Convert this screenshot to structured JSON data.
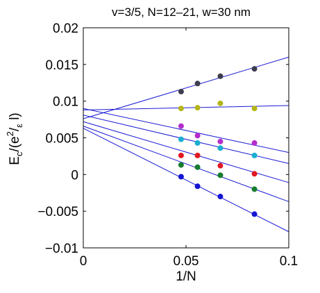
{
  "chart_data": {
    "type": "scatter",
    "title": "v=3/5, N=12–21, w=30 nm",
    "xlabel": "1/N",
    "ylabel": {
      "base": "E",
      "sub": "c",
      "rest1": "/(e",
      "sup": "2",
      "rest2": "/",
      "eps": "ε",
      "rest3": " l)"
    },
    "xlim": [
      0,
      0.1
    ],
    "ylim": [
      -0.01,
      0.02
    ],
    "xticks": [
      0,
      0.05,
      0.1
    ],
    "xtick_labels": [
      "0",
      "0.05",
      "0.1"
    ],
    "yticks": [
      -0.01,
      -0.005,
      0,
      0.005,
      0.01,
      0.015,
      0.02
    ],
    "ytick_labels": [
      "−0.01",
      "−0.005",
      "0",
      "0.005",
      "0.01",
      "0.015",
      "0.02"
    ],
    "grid": false,
    "x": [
      0.0476,
      0.0556,
      0.0667,
      0.0833
    ],
    "series": [
      {
        "color": "#3d3d4f",
        "values": [
          0.0113,
          0.0124,
          0.0134,
          0.0144
        ]
      },
      {
        "color": "#b5b51a",
        "values": [
          0.009,
          0.0091,
          0.0097,
          0.009
        ]
      },
      {
        "color": "#b42fcb",
        "values": [
          0.0066,
          0.0053,
          0.0045,
          0.0043
        ]
      },
      {
        "color": "#1aaed0",
        "values": [
          0.0048,
          0.0043,
          0.0036,
          0.0026
        ]
      },
      {
        "color": "#e01a22",
        "values": [
          0.0026,
          0.0026,
          0.0012,
          0.0001
        ]
      },
      {
        "color": "#177d2d",
        "values": [
          0.0013,
          0.001,
          -0.0001,
          -0.002
        ]
      },
      {
        "color": "#1414d4",
        "values": [
          -0.0003,
          -0.0016,
          -0.003,
          -0.0054
        ]
      }
    ],
    "fit_lines": [
      {
        "intercept": 0.0076,
        "slope": 0.084
      },
      {
        "intercept": 0.0088,
        "slope": 0.006
      },
      {
        "intercept": 0.009,
        "slope": -0.06
      },
      {
        "intercept": 0.0081,
        "slope": -0.066
      },
      {
        "intercept": 0.0072,
        "slope": -0.083
      },
      {
        "intercept": 0.0066,
        "slope": -0.103
      },
      {
        "intercept": 0.0063,
        "slope": -0.141
      }
    ],
    "fit_line_color": "#1a1ad4"
  }
}
